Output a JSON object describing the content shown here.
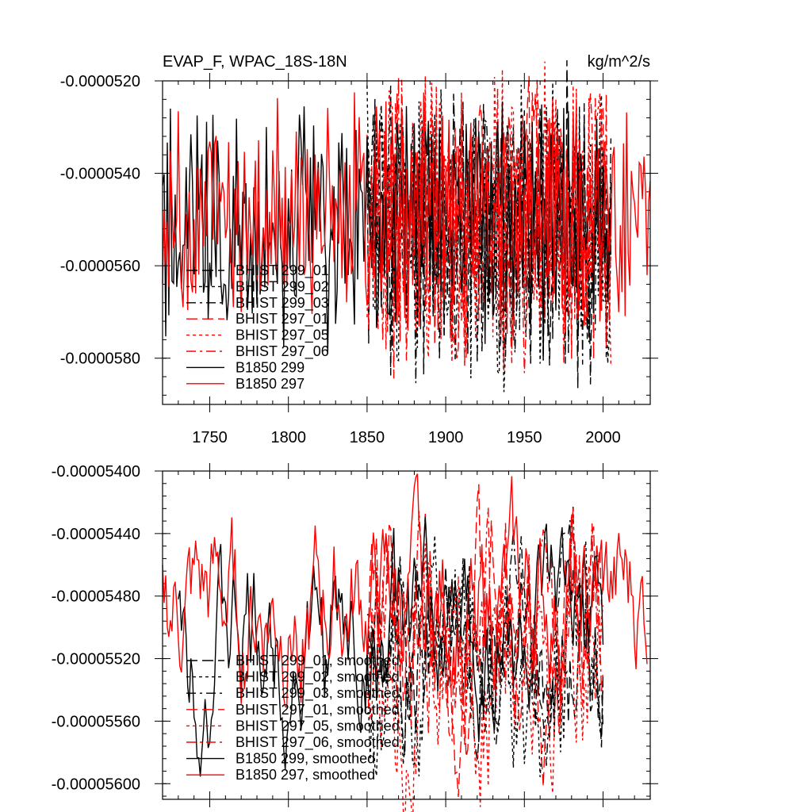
{
  "colors": {
    "black": "#000000",
    "red": "#ff0000"
  },
  "chart_data": [
    {
      "type": "line",
      "title": "EVAP_F, WPAC_18S-18N",
      "units": "kg/m^2/s",
      "xlim": [
        1720,
        2030
      ],
      "ylim": [
        -5.9e-05,
        -5.2e-05
      ],
      "xticks": [
        1750,
        1800,
        1850,
        1900,
        1950,
        2000
      ],
      "xtick_labels": [
        "1750",
        "1800",
        "1850",
        "1900",
        "1950",
        "2000"
      ],
      "yticks": [
        -5.2e-05,
        -5.4e-05,
        -5.6e-05,
        -5.8e-05
      ],
      "ytick_labels": [
        "-0.0000520",
        "-0.0000540",
        "-0.0000560",
        "-0.0000580"
      ],
      "legend_position": "bottom-left",
      "series": [
        {
          "name": "BHIST 299_01",
          "color": "#000000",
          "dash": "long",
          "start": 1850,
          "end": 2005,
          "mean": -5.51e-05,
          "amp": 3.6e-06,
          "seed": 11
        },
        {
          "name": "BHIST 299_02",
          "color": "#000000",
          "dash": "short",
          "start": 1850,
          "end": 2005,
          "mean": -5.52e-05,
          "amp": 3.8e-06,
          "seed": 23
        },
        {
          "name": "BHIST 299_03",
          "color": "#000000",
          "dash": "dashdot",
          "start": 1850,
          "end": 2005,
          "mean": -5.52e-05,
          "amp": 3.6e-06,
          "seed": 37
        },
        {
          "name": "BHIST 297_01",
          "color": "#ff0000",
          "dash": "long",
          "start": 1850,
          "end": 2005,
          "mean": -5.5e-05,
          "amp": 3.6e-06,
          "seed": 41
        },
        {
          "name": "BHIST 297_05",
          "color": "#ff0000",
          "dash": "short",
          "start": 1850,
          "end": 2005,
          "mean": -5.5e-05,
          "amp": 3.8e-06,
          "seed": 53
        },
        {
          "name": "BHIST 297_06",
          "color": "#ff0000",
          "dash": "dashdot",
          "start": 1850,
          "end": 2005,
          "mean": -5.5e-05,
          "amp": 3.6e-06,
          "seed": 67
        },
        {
          "name": "B1850 299",
          "color": "#000000",
          "dash": "solid",
          "start": 1720,
          "end": 2005,
          "mean": -5.51e-05,
          "amp": 3e-06,
          "seed": 79
        },
        {
          "name": "B1850 297",
          "color": "#ff0000",
          "dash": "solid",
          "start": 1720,
          "end": 2030,
          "mean": -5.49e-05,
          "amp": 2.8e-06,
          "seed": 83
        }
      ]
    },
    {
      "type": "line",
      "title": "",
      "xlim": [
        1720,
        2030
      ],
      "ylim": [
        -5.61e-05,
        -5.4e-05
      ],
      "xticks": [
        1750,
        1800,
        1850,
        1900,
        1950,
        2000
      ],
      "yticks": [
        -5.4e-05,
        -5.44e-05,
        -5.48e-05,
        -5.52e-05,
        -5.56e-05,
        -5.6e-05
      ],
      "ytick_labels": [
        "-0.00005400",
        "-0.00005440",
        "-0.00005480",
        "-0.00005520",
        "-0.00005560",
        "-0.00005600"
      ],
      "legend_position": "bottom-left",
      "series": [
        {
          "name": "BHIST 299_01, smoothed",
          "color": "#000000",
          "dash": "long",
          "start": 1850,
          "end": 2000,
          "mean": -5.51e-05,
          "amp": 7e-07,
          "seed": 101
        },
        {
          "name": "BHIST 299_02, smoothed",
          "color": "#000000",
          "dash": "short",
          "start": 1850,
          "end": 2000,
          "mean": -5.53e-05,
          "amp": 7e-07,
          "seed": 113
        },
        {
          "name": "BHIST 299_03, smoothed",
          "color": "#000000",
          "dash": "dashdot",
          "start": 1850,
          "end": 2000,
          "mean": -5.52e-05,
          "amp": 7e-07,
          "seed": 127
        },
        {
          "name": "BHIST 297_01, smoothed",
          "color": "#ff0000",
          "dash": "long",
          "start": 1850,
          "end": 2000,
          "mean": -5.5e-05,
          "amp": 8e-07,
          "seed": 131
        },
        {
          "name": "BHIST 297_05, smoothed",
          "color": "#ff0000",
          "dash": "short",
          "start": 1850,
          "end": 2000,
          "mean": -5.52e-05,
          "amp": 8e-07,
          "seed": 137
        },
        {
          "name": "BHIST 297_06, smoothed",
          "color": "#ff0000",
          "dash": "dashdot",
          "start": 1850,
          "end": 2000,
          "mean": -5.5e-05,
          "amp": 8e-07,
          "seed": 149
        },
        {
          "name": "B1850 299, smoothed",
          "color": "#000000",
          "dash": "solid",
          "start": 1730,
          "end": 2000,
          "mean": -5.51e-05,
          "amp": 6e-07,
          "seed": 151
        },
        {
          "name": "B1850 297, smoothed",
          "color": "#ff0000",
          "dash": "solid",
          "start": 1720,
          "end": 2028,
          "mean": -5.49e-05,
          "amp": 6e-07,
          "seed": 163
        }
      ]
    }
  ]
}
